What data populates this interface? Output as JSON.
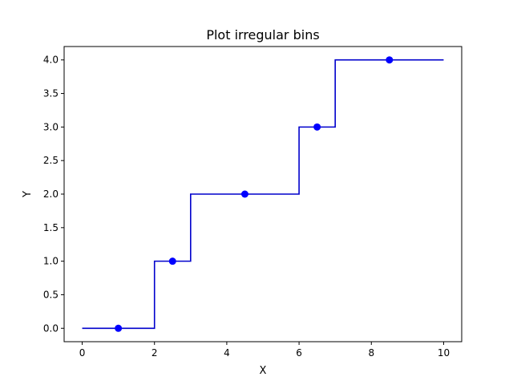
{
  "chart_data": {
    "type": "line",
    "title": "Plot irregular bins",
    "xlabel": "X",
    "ylabel": "Y",
    "xlim": [
      -0.5,
      10.5
    ],
    "ylim": [
      -0.2,
      4.2
    ],
    "xticks": [
      0,
      2,
      4,
      6,
      8,
      10
    ],
    "xtick_labels": [
      "0",
      "2",
      "4",
      "6",
      "8",
      "10"
    ],
    "yticks": [
      0.0,
      0.5,
      1.0,
      1.5,
      2.0,
      2.5,
      3.0,
      3.5,
      4.0
    ],
    "ytick_labels": [
      "0.0",
      "0.5",
      "1.0",
      "1.5",
      "2.0",
      "2.5",
      "3.0",
      "3.5",
      "4.0"
    ],
    "grid": false,
    "series": [
      {
        "style": "step",
        "color": "#0000cc",
        "bin_edges": [
          0,
          2,
          3,
          6,
          7,
          10
        ],
        "values": [
          0,
          1,
          2,
          3,
          4
        ]
      },
      {
        "style": "scatter",
        "color": "#0000ff",
        "x": [
          1,
          2.5,
          4.5,
          6.5,
          8.5
        ],
        "y": [
          0,
          1,
          2,
          3,
          4
        ]
      }
    ]
  }
}
